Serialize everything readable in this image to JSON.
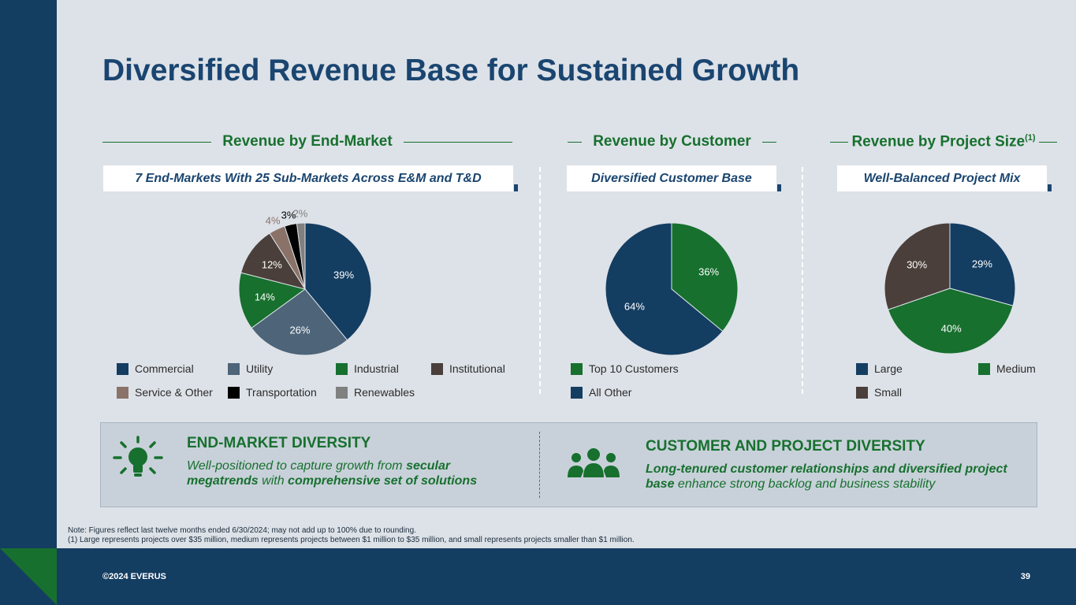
{
  "title": "Diversified Revenue Base for Sustained Growth",
  "sections": {
    "end_market": {
      "heading": "Revenue by End-Market",
      "subtitle": "7 End-Markets With 25 Sub-Markets Across E&M and T&D"
    },
    "customer": {
      "heading": "Revenue by Customer",
      "subtitle": "Diversified Customer Base"
    },
    "project": {
      "heading": "Revenue by Project Size",
      "heading_sup": "(1)",
      "subtitle": "Well-Balanced Project Mix"
    }
  },
  "chart_data": [
    {
      "type": "pie",
      "categories": [
        "Commercial",
        "Utility",
        "Industrial",
        "Institutional",
        "Service & Other",
        "Transportation",
        "Renewables"
      ],
      "values": [
        39,
        26,
        14,
        12,
        4,
        3,
        2
      ],
      "labels": [
        "39%",
        "26%",
        "14%",
        "12%",
        "4%",
        "3%",
        "2%"
      ],
      "colors": [
        "#143d62",
        "#4d6479",
        "#17702e",
        "#4a3f3a",
        "#8b7268",
        "#000000",
        "#808080"
      ],
      "label_colors": [
        "#ffffff",
        "#ffffff",
        "#ffffff",
        "#ffffff",
        "#8b7268",
        "#000000",
        "#808080"
      ],
      "label_outside": [
        false,
        false,
        false,
        false,
        true,
        true,
        true
      ]
    },
    {
      "type": "pie",
      "categories": [
        "Top 10 Customers",
        "All Other"
      ],
      "values": [
        36,
        64
      ],
      "labels": [
        "36%",
        "64%"
      ],
      "colors": [
        "#17702e",
        "#143d62"
      ],
      "label_colors": [
        "#ffffff",
        "#ffffff"
      ],
      "label_outside": [
        false,
        false
      ]
    },
    {
      "type": "pie",
      "categories": [
        "Large",
        "Medium",
        "Small"
      ],
      "values": [
        29,
        40,
        30
      ],
      "labels": [
        "29%",
        "40%",
        "30%"
      ],
      "colors": [
        "#143d62",
        "#17702e",
        "#4a3f3a"
      ],
      "label_colors": [
        "#ffffff",
        "#ffffff",
        "#ffffff"
      ],
      "label_outside": [
        false,
        false,
        false
      ]
    }
  ],
  "diversity": {
    "left": {
      "heading": "END-MARKET DIVERSITY",
      "line1a": "Well-positioned to capture growth from ",
      "line1b": "secular",
      "line2a": "megatrends",
      "line2b": " with ",
      "line2c": "comprehensive set of solutions",
      "icon": "lightbulb-icon"
    },
    "right": {
      "heading": "CUSTOMER AND PROJECT DIVERSITY",
      "line1": "Long-tenured customer relationships and diversified project",
      "line2a": "base",
      "line2b": " enhance strong backlog and business stability",
      "icon": "people-group-icon"
    }
  },
  "notes": {
    "line1": "Note: Figures reflect last twelve months ended 6/30/2024; may not add up to 100% due to rounding.",
    "line2": "(1)   Large represents projects over $35 million, medium represents projects between $1 million to $35 million, and small represents projects smaller than $1 million."
  },
  "footer": {
    "copyright": "©2024 EVERUS",
    "page_number": "39"
  }
}
